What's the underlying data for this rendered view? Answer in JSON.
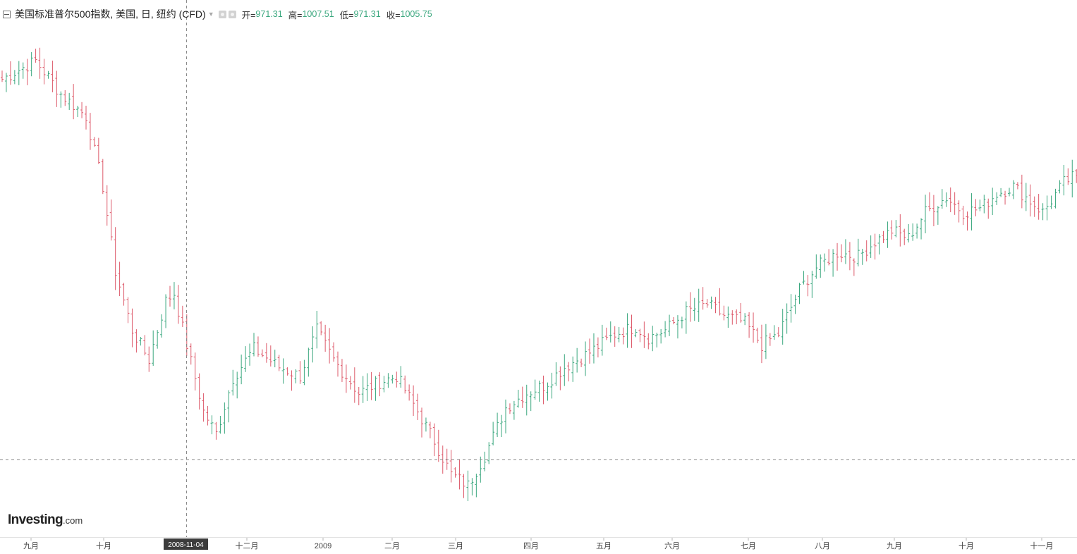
{
  "header": {
    "title": "美国标准普尔500指数, 美国, 日, 纽约 (CFD)",
    "open_label": "开=",
    "open_value": "971.31",
    "high_label": "高=",
    "high_value": "1007.51",
    "low_label": "低=",
    "low_value": "971.31",
    "close_label": "收=",
    "close_value": "1005.75"
  },
  "watermark": {
    "brand": "Investing",
    "suffix": ".com"
  },
  "crosshair": {
    "date_label": "2008-11-04",
    "price": 725
  },
  "colors": {
    "up": "#3aa77e",
    "down": "#dd5a6a",
    "grid": "#e2e2e2",
    "crosshair": "#8a8a8a"
  },
  "chart_data": {
    "type": "ohlc",
    "x_ticks": [
      "九月",
      "十月",
      "十二月",
      "2009",
      "二月",
      "三月",
      "四月",
      "五月",
      "六月",
      "七月",
      "八月",
      "九月",
      "十月",
      "十一月"
    ],
    "ylim": [
      660,
      1290
    ],
    "grid": false,
    "waypoints": [
      {
        "day": 0,
        "close": 1240
      },
      {
        "day": 8,
        "close": 1265
      },
      {
        "day": 14,
        "close": 1220
      },
      {
        "day": 20,
        "close": 1190
      },
      {
        "day": 24,
        "close": 1095
      },
      {
        "day": 27,
        "close": 980
      },
      {
        "day": 31,
        "close": 900
      },
      {
        "day": 35,
        "close": 860
      },
      {
        "day": 39,
        "close": 940
      },
      {
        "day": 41,
        "close": 950
      },
      {
        "day": 44,
        "close": 880
      },
      {
        "day": 48,
        "close": 790
      },
      {
        "day": 51,
        "close": 760
      },
      {
        "day": 55,
        "close": 835
      },
      {
        "day": 60,
        "close": 875
      },
      {
        "day": 66,
        "close": 850
      },
      {
        "day": 71,
        "close": 838
      },
      {
        "day": 75,
        "close": 900
      },
      {
        "day": 79,
        "close": 860
      },
      {
        "day": 85,
        "close": 815
      },
      {
        "day": 90,
        "close": 830
      },
      {
        "day": 94,
        "close": 838
      },
      {
        "day": 99,
        "close": 790
      },
      {
        "day": 103,
        "close": 750
      },
      {
        "day": 107,
        "close": 705
      },
      {
        "day": 111,
        "close": 690
      },
      {
        "day": 115,
        "close": 730
      },
      {
        "day": 120,
        "close": 795
      },
      {
        "day": 125,
        "close": 815
      },
      {
        "day": 129,
        "close": 825
      },
      {
        "day": 134,
        "close": 850
      },
      {
        "day": 140,
        "close": 870
      },
      {
        "day": 146,
        "close": 895
      },
      {
        "day": 151,
        "close": 905
      },
      {
        "day": 154,
        "close": 890
      },
      {
        "day": 158,
        "close": 900
      },
      {
        "day": 163,
        "close": 925
      },
      {
        "day": 168,
        "close": 935
      },
      {
        "day": 172,
        "close": 920
      },
      {
        "day": 177,
        "close": 910
      },
      {
        "day": 181,
        "close": 880
      },
      {
        "day": 185,
        "close": 895
      },
      {
        "day": 190,
        "close": 955
      },
      {
        "day": 194,
        "close": 985
      },
      {
        "day": 199,
        "close": 1005
      },
      {
        "day": 204,
        "close": 1000
      },
      {
        "day": 208,
        "close": 1020
      },
      {
        "day": 212,
        "close": 1035
      },
      {
        "day": 216,
        "close": 1025
      },
      {
        "day": 220,
        "close": 1060
      },
      {
        "day": 225,
        "close": 1080
      },
      {
        "day": 229,
        "close": 1060
      },
      {
        "day": 233,
        "close": 1065
      },
      {
        "day": 237,
        "close": 1085
      },
      {
        "day": 241,
        "close": 1095
      },
      {
        "day": 244,
        "close": 1080
      },
      {
        "day": 248,
        "close": 1060
      },
      {
        "day": 253,
        "close": 1100
      },
      {
        "day": 256,
        "close": 1110
      }
    ]
  }
}
